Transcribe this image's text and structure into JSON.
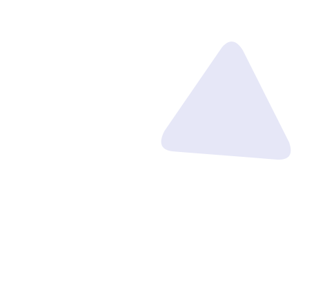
{
  "canvas": {
    "background_color": "#ffffff"
  },
  "shapes": [
    {
      "kind": "rounded-triangle",
      "fill_color": "#e6e7f7",
      "icon": "triangle-icon"
    }
  ]
}
